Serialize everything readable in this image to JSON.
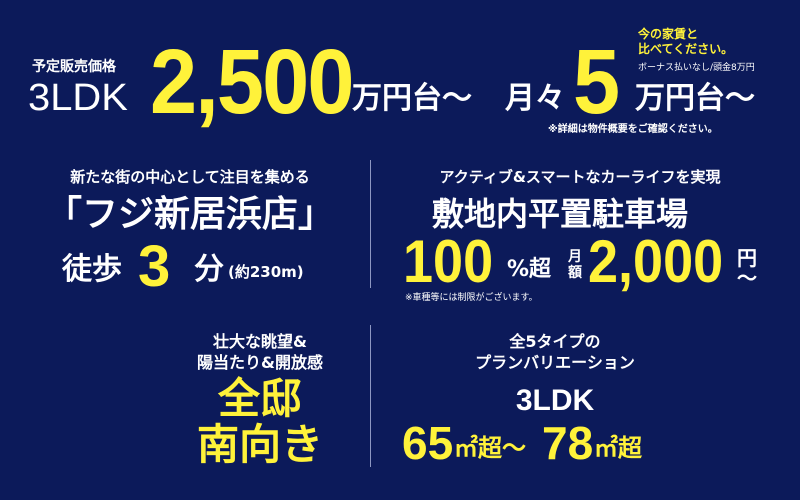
{
  "colors": {
    "background": "#0c1a5a",
    "accent": "#fff23a",
    "text": "#ffffff"
  },
  "price": {
    "label": "予定販売価格",
    "plan": "3LDK",
    "amount": "2,500",
    "unit": "万円台～",
    "monthly_label": "月々",
    "monthly_amount": "5",
    "monthly_unit": "万円台～",
    "compare_line1": "今の家賃と",
    "compare_line2": "比べてください。",
    "bonus_note": "ボーナス払いなし/頭金8万円",
    "detail_note": "※詳細は物件概要をご確認ください。"
  },
  "store": {
    "caption": "新たな街の中心として注目を集める",
    "name": "「フジ新居浜店」",
    "walk_label": "徒歩",
    "walk_minutes": "3",
    "walk_unit": "分",
    "distance": "(約230m)"
  },
  "parking": {
    "caption": "アクティブ&スマートなカーライフを実現",
    "title": "敷地内平置駐車場",
    "ratio": "100",
    "ratio_unit": "%超",
    "fee_label_1": "月",
    "fee_label_2": "額",
    "fee": "2,000",
    "fee_unit": "円",
    "fee_tilde": "～",
    "note": "※車種等には制限がございます。"
  },
  "view": {
    "caption_line1": "壮大な眺望&",
    "caption_line2": "陽当たり&開放感",
    "headline_line1": "全邸",
    "headline_line2": "南向き"
  },
  "plans": {
    "caption_line1": "全5タイプの",
    "caption_line2": "プランバリエーション",
    "layout": "3LDK",
    "area_min": "65",
    "area_unit_1": "㎡超～",
    "area_max": "78",
    "area_unit_2": "㎡超"
  }
}
